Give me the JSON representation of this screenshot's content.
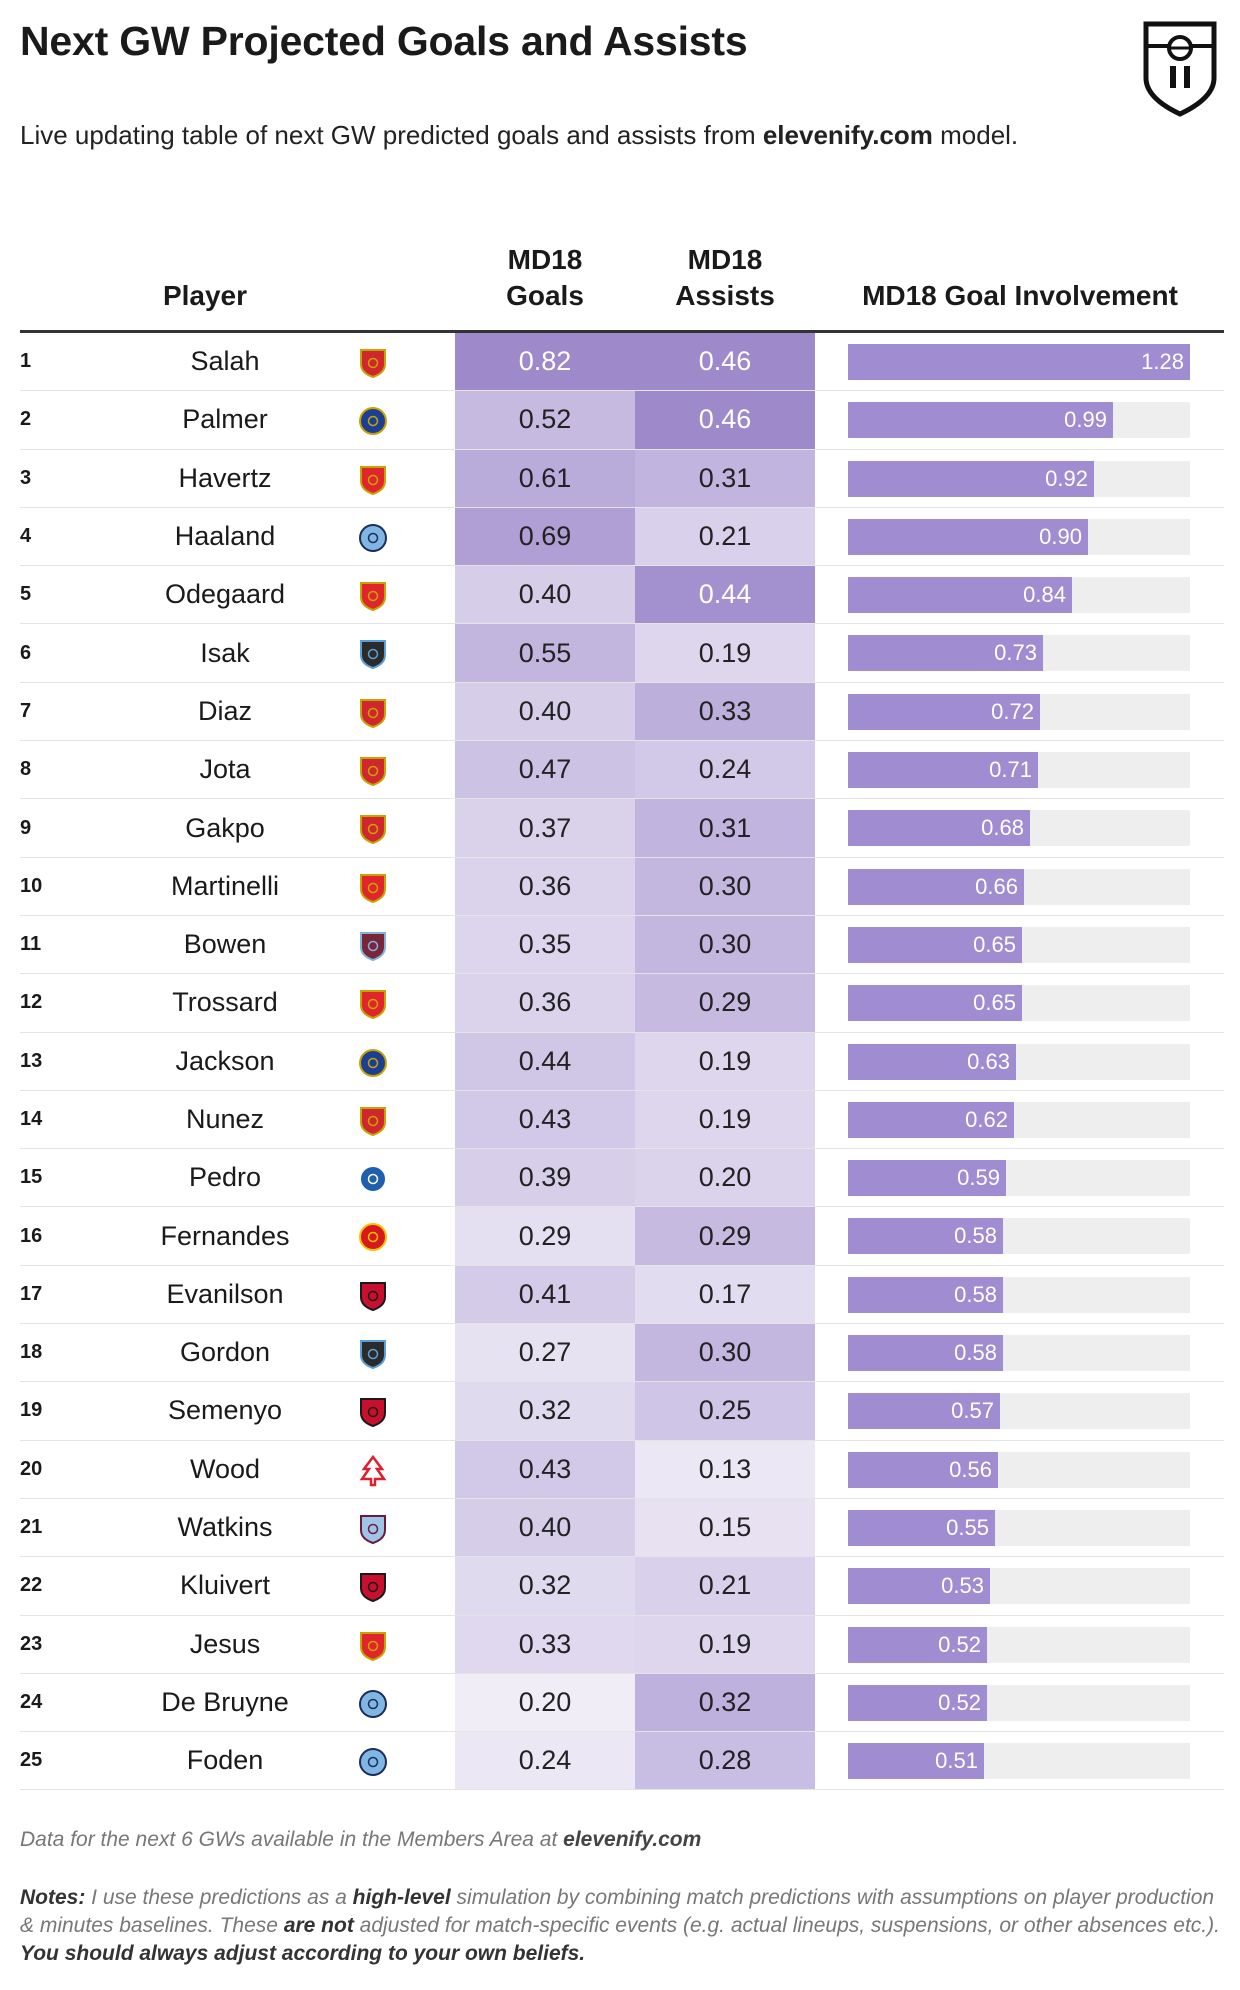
{
  "title": "Next GW Projected Goals and Assists",
  "subtitle": {
    "before": "Live updating table of next GW predicted goals and assists from ",
    "bold": "elevenify.com",
    "after": " model."
  },
  "logo": "elevenify-shield-logo",
  "columns": {
    "player": "Player",
    "goals": "MD18\nGoals",
    "assists": "MD18\nAssists",
    "goal_involvement": "MD18 Goal Involvement"
  },
  "colors": {
    "heat_low": "#f7f5fb",
    "heat_high": "#9e8acb",
    "bar": "#a08cd0",
    "bar_track": "#eeeeee"
  },
  "chart_data": {
    "type": "table",
    "rows": [
      {
        "rank": "1",
        "player": "Salah",
        "club_icon": "liverpool-crest-icon",
        "goals": 0.82,
        "assists": 0.46,
        "gi": 1.28
      },
      {
        "rank": "2",
        "player": "Palmer",
        "club_icon": "chelsea-crest-icon",
        "goals": 0.52,
        "assists": 0.46,
        "gi": 0.99
      },
      {
        "rank": "3",
        "player": "Havertz",
        "club_icon": "arsenal-crest-icon",
        "goals": 0.61,
        "assists": 0.31,
        "gi": 0.92
      },
      {
        "rank": "4",
        "player": "Haaland",
        "club_icon": "man-city-crest-icon",
        "goals": 0.69,
        "assists": 0.21,
        "gi": 0.9
      },
      {
        "rank": "5",
        "player": "Odegaard",
        "club_icon": "arsenal-crest-icon",
        "goals": 0.4,
        "assists": 0.44,
        "gi": 0.84
      },
      {
        "rank": "6",
        "player": "Isak",
        "club_icon": "newcastle-crest-icon",
        "goals": 0.55,
        "assists": 0.19,
        "gi": 0.73
      },
      {
        "rank": "7",
        "player": "Diaz",
        "club_icon": "liverpool-crest-icon",
        "goals": 0.4,
        "assists": 0.33,
        "gi": 0.72
      },
      {
        "rank": "8",
        "player": "Jota",
        "club_icon": "liverpool-crest-icon",
        "goals": 0.47,
        "assists": 0.24,
        "gi": 0.71
      },
      {
        "rank": "9",
        "player": "Gakpo",
        "club_icon": "liverpool-crest-icon",
        "goals": 0.37,
        "assists": 0.31,
        "gi": 0.68
      },
      {
        "rank": "10",
        "player": "Martinelli",
        "club_icon": "arsenal-crest-icon",
        "goals": 0.36,
        "assists": 0.3,
        "gi": 0.66
      },
      {
        "rank": "11",
        "player": "Bowen",
        "club_icon": "west-ham-crest-icon",
        "goals": 0.35,
        "assists": 0.3,
        "gi": 0.65
      },
      {
        "rank": "12",
        "player": "Trossard",
        "club_icon": "arsenal-crest-icon",
        "goals": 0.36,
        "assists": 0.29,
        "gi": 0.65
      },
      {
        "rank": "13",
        "player": "Jackson",
        "club_icon": "chelsea-crest-icon",
        "goals": 0.44,
        "assists": 0.19,
        "gi": 0.63
      },
      {
        "rank": "14",
        "player": "Nunez",
        "club_icon": "liverpool-crest-icon",
        "goals": 0.43,
        "assists": 0.19,
        "gi": 0.62
      },
      {
        "rank": "15",
        "player": "Pedro",
        "club_icon": "brighton-crest-icon",
        "goals": 0.39,
        "assists": 0.2,
        "gi": 0.59
      },
      {
        "rank": "16",
        "player": "Fernandes",
        "club_icon": "man-utd-crest-icon",
        "goals": 0.29,
        "assists": 0.29,
        "gi": 0.58
      },
      {
        "rank": "17",
        "player": "Evanilson",
        "club_icon": "bournemouth-crest-icon",
        "goals": 0.41,
        "assists": 0.17,
        "gi": 0.58
      },
      {
        "rank": "18",
        "player": "Gordon",
        "club_icon": "newcastle-crest-icon",
        "goals": 0.27,
        "assists": 0.3,
        "gi": 0.58
      },
      {
        "rank": "19",
        "player": "Semenyo",
        "club_icon": "bournemouth-crest-icon",
        "goals": 0.32,
        "assists": 0.25,
        "gi": 0.57
      },
      {
        "rank": "20",
        "player": "Wood",
        "club_icon": "nottm-forest-crest-icon",
        "goals": 0.43,
        "assists": 0.13,
        "gi": 0.56
      },
      {
        "rank": "21",
        "player": "Watkins",
        "club_icon": "aston-villa-crest-icon",
        "goals": 0.4,
        "assists": 0.15,
        "gi": 0.55
      },
      {
        "rank": "22",
        "player": "Kluivert",
        "club_icon": "bournemouth-crest-icon",
        "goals": 0.32,
        "assists": 0.21,
        "gi": 0.53
      },
      {
        "rank": "23",
        "player": "Jesus",
        "club_icon": "arsenal-crest-icon",
        "goals": 0.33,
        "assists": 0.19,
        "gi": 0.52
      },
      {
        "rank": "24",
        "player": "De Bruyne",
        "club_icon": "man-city-crest-icon",
        "goals": 0.2,
        "assists": 0.32,
        "gi": 0.52
      },
      {
        "rank": "25",
        "player": "Foden",
        "club_icon": "man-city-crest-icon",
        "goals": 0.24,
        "assists": 0.28,
        "gi": 0.51
      }
    ],
    "gi_max": 1.28
  },
  "footnote": {
    "before": "Data for the next 6 GWs available in the Members Area at ",
    "bold": "elevenify.com"
  },
  "notes": {
    "label": "Notes:",
    "part1": " I use these predictions as a ",
    "bold1": "high-level",
    "part2": " simulation by combining match predictions with assumptions on player production & minutes baselines. These ",
    "bold2": "are not",
    "part3": " adjusted for match-specific events (e.g. actual lineups, suspensions, or other absences etc.). ",
    "bold3": "You should always adjust according to your own beliefs."
  }
}
